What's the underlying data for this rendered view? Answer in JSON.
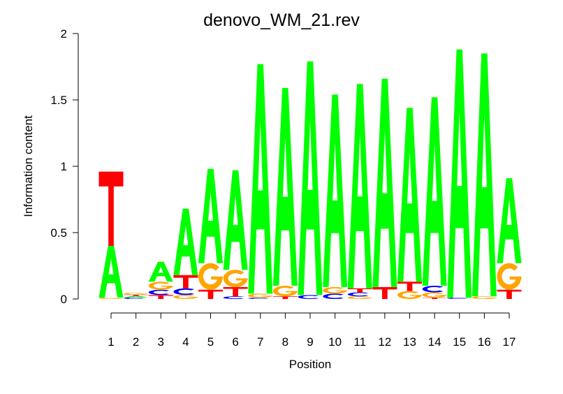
{
  "chart_data": {
    "type": "sequence-logo",
    "title": "denovo_WM_21.rev",
    "xlabel": "Position",
    "ylabel": "Information content",
    "ylim": [
      0,
      2
    ],
    "yticks": [
      "0",
      "0.5",
      "1",
      "1.5",
      "2"
    ],
    "ytick_values": [
      0,
      0.5,
      1,
      1.5,
      2
    ],
    "categories": [
      "1",
      "2",
      "3",
      "4",
      "5",
      "6",
      "7",
      "8",
      "9",
      "10",
      "11",
      "12",
      "13",
      "14",
      "15",
      "16",
      "17"
    ],
    "colors": {
      "A": "#00ff00",
      "C": "#0000ff",
      "G": "#ffa500",
      "T": "#ff0000"
    },
    "stacks": [
      [
        [
          "G",
          0.01
        ],
        [
          "A",
          0.39
        ],
        [
          "T",
          0.56
        ]
      ],
      [
        [
          "C",
          0.012
        ],
        [
          "A",
          0.012
        ],
        [
          "T",
          0.008
        ],
        [
          "G",
          0.015
        ]
      ],
      [
        [
          "T",
          0.03
        ],
        [
          "C",
          0.04
        ],
        [
          "G",
          0.06
        ],
        [
          "A",
          0.15
        ]
      ],
      [
        [
          "G",
          0.03
        ],
        [
          "C",
          0.05
        ],
        [
          "T",
          0.1
        ],
        [
          "A",
          0.5
        ]
      ],
      [
        [
          "T",
          0.07
        ],
        [
          "G",
          0.2
        ],
        [
          "A",
          0.71
        ]
      ],
      [
        [
          "C",
          0.02
        ],
        [
          "T",
          0.07
        ],
        [
          "G",
          0.13
        ],
        [
          "A",
          0.75
        ]
      ],
      [
        [
          "C",
          0.01
        ],
        [
          "G",
          0.03
        ],
        [
          "A",
          1.73
        ]
      ],
      [
        [
          "T",
          0.02
        ],
        [
          "G",
          0.08
        ],
        [
          "A",
          1.49
        ]
      ],
      [
        [
          "C",
          0.03
        ],
        [
          "A",
          1.76
        ]
      ],
      [
        [
          "C",
          0.04
        ],
        [
          "G",
          0.05
        ],
        [
          "A",
          1.45
        ]
      ],
      [
        [
          "G",
          0.02
        ],
        [
          "C",
          0.03
        ],
        [
          "T",
          0.03
        ],
        [
          "A",
          1.54
        ]
      ],
      [
        [
          "T",
          0.09
        ],
        [
          "A",
          1.57
        ]
      ],
      [
        [
          "G",
          0.06
        ],
        [
          "T",
          0.07
        ],
        [
          "A",
          1.31
        ]
      ],
      [
        [
          "T",
          0.01
        ],
        [
          "G",
          0.04
        ],
        [
          "C",
          0.05
        ],
        [
          "A",
          1.42
        ]
      ],
      [
        [
          "C",
          0.01
        ],
        [
          "A",
          1.87
        ]
      ],
      [
        [
          "G",
          0.02
        ],
        [
          "A",
          1.83
        ]
      ],
      [
        [
          "T",
          0.07
        ],
        [
          "G",
          0.2
        ],
        [
          "A",
          0.64
        ]
      ]
    ]
  }
}
